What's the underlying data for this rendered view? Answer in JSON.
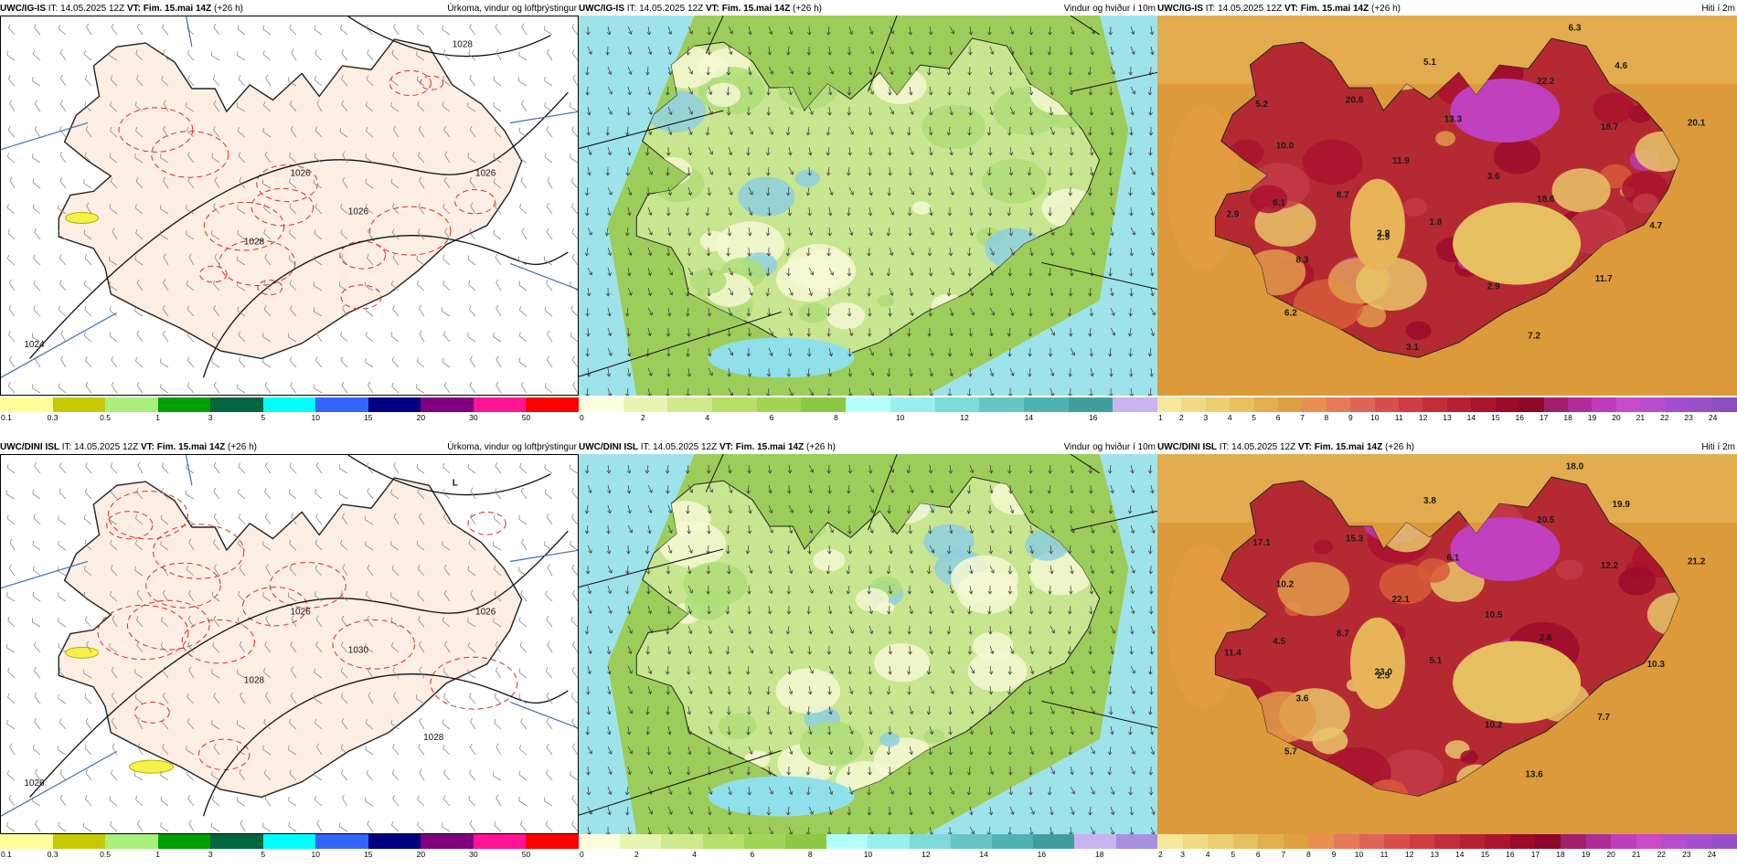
{
  "panels": [
    {
      "id": "p1",
      "model": "UWC/IG-IS",
      "it": "IT: 14.05.2025 12Z",
      "vt": "VT: Fim. 15.mai 14Z",
      "lead": "(+26 h)",
      "title": "Úrkoma, vindur og loftþrýstingur",
      "style": "precip",
      "legend": {
        "colors": [
          "#ffff99",
          "#c8c800",
          "#a8f07a",
          "#00a000",
          "#00663d",
          "#00ffff",
          "#3366ff",
          "#000080",
          "#800080",
          "#ff1493",
          "#ff0000"
        ],
        "labels": [
          "0.1",
          "0.3",
          "0.5",
          "1",
          "3",
          "5",
          "10",
          "15",
          "20",
          "30",
          "50"
        ]
      },
      "pressure_labels": [
        "1026",
        "1028",
        "1026",
        "1024",
        "1028",
        "1026"
      ],
      "value_labels": []
    },
    {
      "id": "p2",
      "model": "UWC/IG-IS",
      "it": "IT: 14.05.2025 12Z",
      "vt": "VT: Fim. 15.mai 14Z",
      "lead": "(+26 h)",
      "title": "Vindur og hviður í 10m",
      "style": "wind",
      "legend": {
        "colors": [
          "#ffffe0",
          "#e6f5b0",
          "#cfea8c",
          "#b8df6b",
          "#a2d456",
          "#8bc940",
          "#b3ffff",
          "#99eeee",
          "#7fdada",
          "#66c6c6",
          "#4fb2b2",
          "#3f9f9f",
          "#c8b4f0"
        ],
        "labels": [
          "0",
          "2",
          "4",
          "6",
          "8",
          "10",
          "12",
          "14",
          "16"
        ]
      },
      "value_labels": []
    },
    {
      "id": "p3",
      "model": "UWC/IG-IS",
      "it": "IT: 14.05.2025 12Z",
      "vt": "VT: Fim. 15.mai 14Z",
      "lead": "(+26 h)",
      "title": "Hiti í 2m",
      "style": "temp",
      "legend": {
        "colors": [
          "#f6e79a",
          "#f1da86",
          "#ecce73",
          "#e7c060",
          "#e2b04e",
          "#ddA042",
          "#e89050",
          "#e47a5a",
          "#df6457",
          "#d84f4c",
          "#cf3c42",
          "#c42c3a",
          "#b81f33",
          "#ab142d",
          "#9c0b2a",
          "#8e0628",
          "#a0206e",
          "#b02c9a",
          "#bf3cbb",
          "#c84ac8",
          "#b84cd0",
          "#a44fd0",
          "#9650c8",
          "#8a50c0"
        ],
        "labels": [
          "1",
          "2",
          "3",
          "4",
          "5",
          "6",
          "7",
          "8",
          "9",
          "10",
          "11",
          "12",
          "13",
          "14",
          "15",
          "16",
          "17",
          "18",
          "19",
          "20",
          "21",
          "22",
          "23",
          "24"
        ]
      },
      "value_labels": [
        "5.2",
        "2.9",
        "6.3",
        "5.1",
        "22.2",
        "4.6",
        "10.0",
        "20.6",
        "13.3",
        "18.7",
        "20.1",
        "11.9",
        "3.6",
        "2.9",
        "6.1",
        "8.7",
        "18.6",
        "4.7",
        "2.9",
        "1.8",
        "8.3",
        "2.9",
        "11.7",
        "6.2",
        "7.2",
        "3.1"
      ]
    },
    {
      "id": "p4",
      "model": "UWC/DINI ISL",
      "it": "IT: 14.05.2025 12Z",
      "vt": "VT: Fim. 15.mai 14Z",
      "lead": "(+26 h)",
      "title": "Úrkoma, vindur og loftþrýstingur",
      "style": "precip",
      "legend": {
        "colors": [
          "#ffff99",
          "#c8c800",
          "#a8f07a",
          "#00a000",
          "#00663d",
          "#00ffff",
          "#3366ff",
          "#000080",
          "#800080",
          "#ff1493",
          "#ff0000"
        ],
        "labels": [
          "0.1",
          "0.3",
          "0.5",
          "1",
          "3",
          "5",
          "10",
          "15",
          "20",
          "30",
          "50"
        ]
      },
      "pressure_labels": [
        "1026",
        "L",
        "1026",
        "1026",
        "1028",
        "1030",
        "1028"
      ],
      "value_labels": []
    },
    {
      "id": "p5",
      "model": "UWC/DINI ISL",
      "it": "IT: 14.05.2025 12Z",
      "vt": "VT: Fim. 15.mai 14Z",
      "lead": "(+26 h)",
      "title": "Vindur og hviður í 10m",
      "style": "wind",
      "legend": {
        "colors": [
          "#ffffe0",
          "#e6f5b0",
          "#cfea8c",
          "#b8df6b",
          "#a2d456",
          "#8bc940",
          "#b3ffff",
          "#99eeee",
          "#7fdada",
          "#66c6c6",
          "#4fb2b2",
          "#3f9f9f",
          "#c8b4f0",
          "#a890e0"
        ],
        "labels": [
          "0",
          "2",
          "4",
          "6",
          "8",
          "10",
          "12",
          "14",
          "16",
          "18"
        ]
      },
      "value_labels": []
    },
    {
      "id": "p6",
      "model": "UWC/DINI ISL",
      "it": "IT: 14.05.2025 12Z",
      "vt": "VT: Fim. 15.mai 14Z",
      "lead": "(+26 h)",
      "title": "Hiti í 2m",
      "style": "temp",
      "legend": {
        "colors": [
          "#f6e79a",
          "#f1da86",
          "#ecce73",
          "#e7c060",
          "#e2b04e",
          "#dda042",
          "#e89050",
          "#e47a5a",
          "#df6457",
          "#d84f4c",
          "#cf3c42",
          "#c42c3a",
          "#b81f33",
          "#ab142d",
          "#9c0b2a",
          "#8e0628",
          "#a0206e",
          "#b02c9a",
          "#bf3cbb",
          "#c84ac8",
          "#b84cd0",
          "#a44fd0",
          "#9650c8"
        ],
        "labels": [
          "2",
          "3",
          "4",
          "5",
          "6",
          "7",
          "8",
          "9",
          "10",
          "11",
          "12",
          "13",
          "14",
          "15",
          "16",
          "17",
          "18",
          "19",
          "20",
          "21",
          "22",
          "23",
          "24"
        ]
      },
      "value_labels": [
        "17.1",
        "11.4",
        "18.0",
        "3.8",
        "20.5",
        "19.9",
        "10.2",
        "15.3",
        "6.1",
        "12.2",
        "21.2",
        "22.1",
        "10.5",
        "23.0",
        "4.5",
        "8.7",
        "2.6",
        "10.3",
        "2.5",
        "5.1",
        "3.6",
        "10.2",
        "7.7",
        "5.7",
        "13.6"
      ]
    }
  ]
}
